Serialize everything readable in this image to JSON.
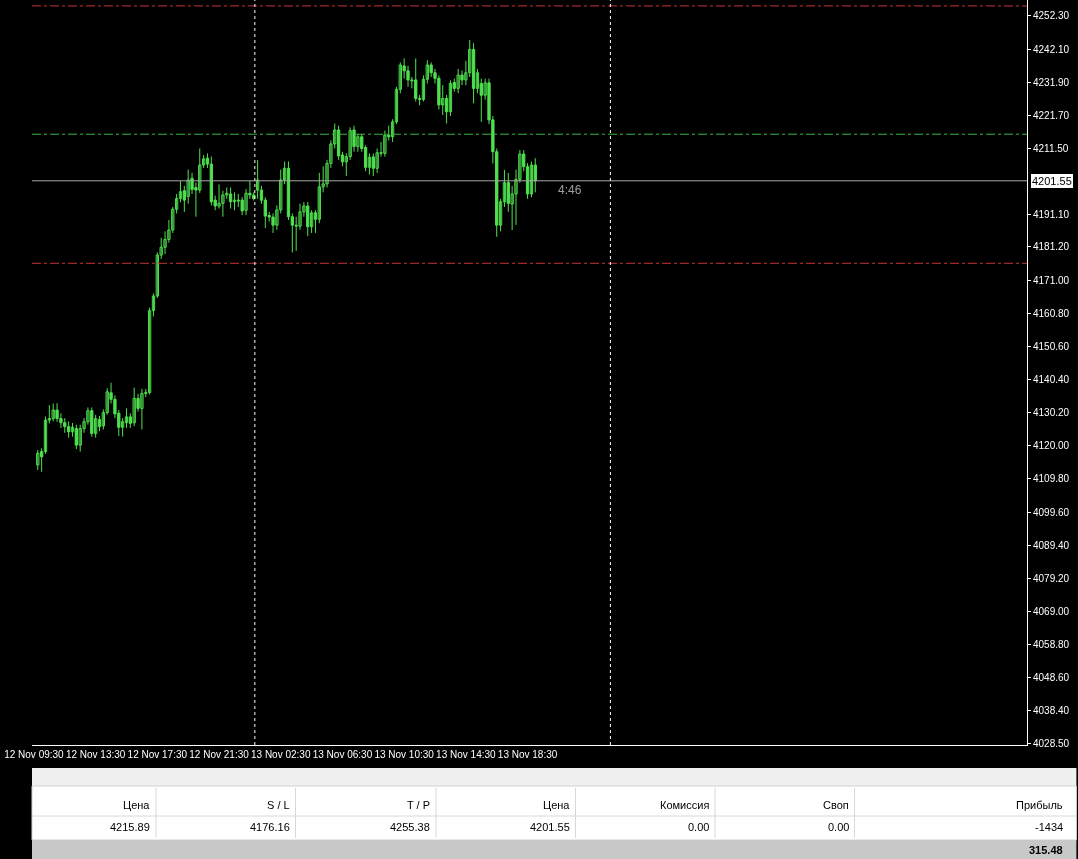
{
  "chart_data": {
    "type": "candlestick",
    "color": "#4fe04f",
    "categories": [
      "12 Nov 09:30",
      null,
      null,
      null,
      null,
      null,
      null,
      null,
      null,
      null,
      null,
      null,
      null,
      null,
      null,
      null,
      "12 Nov 13:30",
      null,
      null,
      null,
      null,
      null,
      null,
      null,
      null,
      null,
      null,
      null,
      null,
      null,
      null,
      null,
      "12 Nov 17:30",
      null,
      null,
      null,
      null,
      null,
      null,
      null,
      null,
      null,
      null,
      null,
      null,
      null,
      null,
      null,
      "12 Nov 21:30",
      null,
      null,
      null,
      null,
      null,
      null,
      null,
      null,
      null,
      null,
      null,
      null,
      null,
      null,
      null,
      "13 Nov 02:30",
      null,
      null,
      null,
      null,
      null,
      null,
      null,
      null,
      null,
      null,
      null,
      null,
      null,
      null,
      null,
      "13 Nov 06:30",
      null,
      null,
      null,
      null,
      null,
      null,
      null,
      null,
      null,
      null,
      null,
      null,
      null,
      null,
      null,
      "13 Nov 10:30",
      null,
      null,
      null,
      null,
      null,
      null,
      null,
      null,
      null,
      null,
      null,
      null,
      null,
      null,
      null,
      "13 Nov 14:30",
      null,
      null,
      null,
      null,
      null,
      null,
      null,
      null,
      null,
      null,
      null,
      null,
      null,
      null,
      null,
      "13 Nov 18:30",
      null,
      null,
      null,
      null,
      null,
      null,
      null,
      null,
      null,
      null,
      null,
      null,
      null,
      null,
      null,
      null,
      null,
      null,
      null,
      null,
      null,
      null,
      null,
      null,
      null,
      null,
      null,
      null,
      null,
      null,
      null,
      null,
      null,
      null,
      null,
      null,
      null,
      null,
      null,
      null,
      null,
      null,
      null,
      null,
      null,
      null,
      null,
      null,
      null,
      null,
      null,
      null,
      null,
      null,
      null,
      null,
      null,
      null,
      null,
      null,
      null,
      null,
      null,
      null,
      null,
      null,
      null,
      null,
      null,
      null,
      null,
      null,
      null,
      null,
      null,
      null,
      null,
      null,
      null,
      null,
      null,
      null,
      null,
      null,
      null,
      null,
      null,
      null,
      null,
      null,
      null,
      null,
      null,
      null,
      null,
      null,
      null,
      null,
      null,
      null,
      null,
      null,
      null,
      null,
      null,
      null,
      null,
      null,
      null,
      null,
      null,
      null,
      null,
      null,
      null,
      null,
      null,
      null,
      null,
      null,
      null,
      null,
      null,
      null,
      null,
      null,
      null,
      null,
      null
    ],
    "ohlc": [
      null,
      [
        4114.1,
        4118.7,
        4112.5,
        4117.7
      ],
      [
        4118.2,
        4119.2,
        4112.0,
        4116.6
      ],
      [
        4118.2,
        4129.0,
        4117.5,
        4127.9
      ],
      [
        4127.9,
        4132.5,
        4126.9,
        4128.4
      ],
      [
        4128.4,
        4133.0,
        4127.5,
        4131.0
      ],
      [
        4131.0,
        4133.1,
        4127.4,
        4128.4
      ],
      [
        4128.4,
        4130.0,
        4125.5,
        4127.1
      ],
      [
        4127.1,
        4128.5,
        4124.0,
        4125.9
      ],
      [
        4125.9,
        4127.5,
        4122.5,
        4124.3
      ],
      [
        4124.3,
        4127.0,
        4122.8,
        4125.7
      ],
      [
        4125.3,
        4126.5,
        4119.0,
        4120.2
      ],
      [
        4120.2,
        4126.5,
        4118.2,
        4125.3
      ],
      [
        4125.3,
        4128.5,
        4124.0,
        4127.4
      ],
      [
        4127.4,
        4131.8,
        4126.5,
        4130.8
      ],
      [
        4130.8,
        4131.8,
        4122.8,
        4123.8
      ],
      [
        4123.8,
        4129.5,
        4122.5,
        4128.4
      ],
      [
        4128.1,
        4129.2,
        4124.5,
        4125.9
      ],
      [
        4126.1,
        4131.2,
        4125.0,
        4130.2
      ],
      [
        4130.2,
        4137.7,
        4129.5,
        4136.6
      ],
      [
        4136.3,
        4139.4,
        4133.0,
        4134.3
      ],
      [
        4134.3,
        4135.5,
        4128.5,
        4129.8
      ],
      [
        4130.0,
        4131.0,
        4123.0,
        4125.7
      ],
      [
        4125.7,
        4128.5,
        4122.8,
        4127.4
      ],
      [
        4127.1,
        4131.5,
        4125.5,
        4128.9
      ],
      [
        4128.9,
        4130.0,
        4125.5,
        4126.9
      ],
      [
        4127.1,
        4137.9,
        4126.0,
        4134.6
      ],
      [
        4134.6,
        4136.0,
        4130.5,
        4131.5
      ],
      [
        4131.5,
        4137.5,
        4125.0,
        4136.1
      ],
      [
        4136.1,
        4137.5,
        4135.0,
        4136.4
      ],
      [
        4136.4,
        4162.5,
        4135.8,
        4161.6
      ],
      [
        4161.6,
        4166.9,
        4159.8,
        4166.1
      ],
      [
        4166.1,
        4179.5,
        4165.5,
        4178.7
      ],
      [
        4178.7,
        4184.0,
        4177.5,
        4181.1
      ],
      [
        4181.1,
        4186.0,
        4179.0,
        4183.5
      ],
      [
        4183.5,
        4189.5,
        4182.5,
        4186.4
      ],
      [
        4186.4,
        4193.5,
        4185.5,
        4192.8
      ],
      [
        4192.8,
        4197.5,
        4191.5,
        4196.1
      ],
      [
        4196.1,
        4201.5,
        4195.0,
        4198.2
      ],
      [
        4198.5,
        4200.0,
        4192.0,
        4195.6
      ],
      [
        4196.7,
        4205.0,
        4194.5,
        4201.8
      ],
      [
        4202.3,
        4204.0,
        4197.5,
        4198.9
      ],
      [
        4199.5,
        4201.0,
        4190.5,
        4198.7
      ],
      [
        4198.7,
        4211.5,
        4197.8,
        4206.4
      ],
      [
        4206.4,
        4209.5,
        4205.5,
        4208.3
      ],
      [
        4208.5,
        4210.0,
        4205.5,
        4206.7
      ],
      [
        4206.7,
        4209.0,
        4194.0,
        4195.1
      ],
      [
        4195.6,
        4197.0,
        4192.5,
        4193.8
      ],
      [
        4193.8,
        4200.5,
        4193.0,
        4194.6
      ],
      [
        4194.6,
        4198.5,
        4190.5,
        4197.2
      ],
      [
        4197.2,
        4199.5,
        4196.0,
        4197.7
      ],
      [
        4197.5,
        4199.5,
        4193.0,
        4195.1
      ],
      [
        4195.1,
        4198.0,
        4192.5,
        4195.6
      ],
      [
        4195.6,
        4197.5,
        4193.5,
        4195.3
      ],
      [
        4195.6,
        4196.5,
        4191.0,
        4192.3
      ],
      [
        4192.5,
        4199.0,
        4191.0,
        4197.7
      ],
      [
        4197.7,
        4201.5,
        4196.0,
        4197.2
      ],
      [
        4197.2,
        4198.0,
        4195.5,
        4196.1
      ],
      [
        4198.7,
        4207.9,
        4196.0,
        4201.8
      ],
      [
        4198.7,
        4200.0,
        4194.5,
        4195.6
      ],
      [
        4195.6,
        4196.5,
        4187.0,
        4190.7
      ],
      [
        4190.9,
        4192.0,
        4189.0,
        4190.4
      ],
      [
        4190.4,
        4191.5,
        4185.5,
        4187.9
      ],
      [
        4187.9,
        4194.0,
        4186.5,
        4192.6
      ],
      [
        4192.6,
        4205.0,
        4191.5,
        4201.8
      ],
      [
        4201.8,
        4207.5,
        4200.5,
        4205.4
      ],
      [
        4205.4,
        4207.5,
        4189.5,
        4190.5
      ],
      [
        4190.5,
        4191.5,
        4179.5,
        4187.9
      ],
      [
        4187.9,
        4190.5,
        4180.0,
        4187.6
      ],
      [
        4187.6,
        4194.5,
        4186.5,
        4192.0
      ],
      [
        4192.0,
        4195.0,
        4190.5,
        4193.8
      ],
      [
        4193.8,
        4195.0,
        4184.5,
        4187.4
      ],
      [
        4187.4,
        4192.5,
        4185.5,
        4191.7
      ],
      [
        4191.7,
        4192.5,
        4185.5,
        4189.7
      ],
      [
        4189.7,
        4204.0,
        4188.5,
        4199.7
      ],
      [
        4199.7,
        4206.0,
        4198.0,
        4200.6
      ],
      [
        4200.6,
        4208.0,
        4199.5,
        4206.9
      ],
      [
        4206.9,
        4214.0,
        4205.5,
        4212.9
      ],
      [
        4212.9,
        4219.2,
        4211.5,
        4217.2
      ],
      [
        4217.2,
        4218.5,
        4208.0,
        4209.2
      ],
      [
        4209.5,
        4210.5,
        4206.0,
        4207.4
      ],
      [
        4207.4,
        4210.0,
        4203.0,
        4209.0
      ],
      [
        4209.0,
        4218.0,
        4208.0,
        4217.0
      ],
      [
        4217.2,
        4218.5,
        4210.5,
        4212.1
      ],
      [
        4212.1,
        4216.0,
        4210.5,
        4215.1
      ],
      [
        4215.1,
        4216.0,
        4210.5,
        4211.5
      ],
      [
        4211.8,
        4212.5,
        4204.5,
        4205.7
      ],
      [
        4205.7,
        4210.0,
        4203.5,
        4208.8
      ],
      [
        4208.9,
        4210.0,
        4203.0,
        4205.4
      ],
      [
        4205.4,
        4211.5,
        4204.0,
        4210.2
      ],
      [
        4210.2,
        4213.5,
        4209.0,
        4210.0
      ],
      [
        4210.0,
        4217.0,
        4209.0,
        4215.6
      ],
      [
        4215.6,
        4218.5,
        4214.0,
        4215.1
      ],
      [
        4215.1,
        4220.5,
        4213.5,
        4219.7
      ],
      [
        4219.7,
        4230.5,
        4219.0,
        4229.7
      ],
      [
        4229.7,
        4238.0,
        4228.5,
        4237.2
      ],
      [
        4236.9,
        4239.2,
        4233.0,
        4235.4
      ],
      [
        4235.4,
        4237.0,
        4230.5,
        4232.6
      ],
      [
        4232.6,
        4233.5,
        4230.0,
        4232.3
      ],
      [
        4232.6,
        4239.2,
        4226.0,
        4226.9
      ],
      [
        4226.9,
        4228.0,
        4224.8,
        4226.6
      ],
      [
        4226.6,
        4234.0,
        4226.0,
        4232.8
      ],
      [
        4232.8,
        4238.7,
        4231.5,
        4237.2
      ],
      [
        4237.2,
        4238.0,
        4233.5,
        4234.8
      ],
      [
        4234.8,
        4236.0,
        4231.5,
        4233.1
      ],
      [
        4233.1,
        4234.0,
        4223.5,
        4224.9
      ],
      [
        4224.9,
        4231.0,
        4221.8,
        4226.9
      ],
      [
        4226.9,
        4228.0,
        4219.2,
        4222.8
      ],
      [
        4222.8,
        4232.5,
        4221.5,
        4231.5
      ],
      [
        4231.8,
        4233.0,
        4229.0,
        4230.0
      ],
      [
        4230.0,
        4236.0,
        4228.5,
        4234.1
      ],
      [
        4234.1,
        4235.5,
        4231.0,
        4232.6
      ],
      [
        4232.6,
        4238.5,
        4231.0,
        4234.8
      ],
      [
        4234.8,
        4244.9,
        4233.5,
        4242.0
      ],
      [
        4242.0,
        4243.9,
        4225.4,
        4230.0
      ],
      [
        4230.0,
        4236.0,
        4228.5,
        4234.8
      ],
      [
        4231.5,
        4233.0,
        4219.7,
        4227.9
      ],
      [
        4227.9,
        4233.0,
        4226.5,
        4231.7
      ],
      [
        4231.7,
        4233.0,
        4219.0,
        4220.3
      ],
      [
        4220.3,
        4221.5,
        4206.9,
        4210.5
      ],
      [
        4210.5,
        4211.5,
        4184.3,
        4187.9
      ],
      [
        4187.9,
        4196.0,
        4186.0,
        4195.1
      ],
      [
        4195.1,
        4204.9,
        4193.5,
        4201.0
      ],
      [
        4201.0,
        4204.0,
        4192.0,
        4194.6
      ],
      [
        4194.4,
        4200.0,
        4186.4,
        4197.5
      ],
      [
        4197.5,
        4205.0,
        4188.0,
        4202.0
      ],
      [
        4202.0,
        4211.0,
        4201.0,
        4209.8
      ],
      [
        4209.8,
        4211.0,
        4204.5,
        4205.9
      ],
      [
        4205.9,
        4207.0,
        4196.0,
        4197.5
      ],
      [
        4197.5,
        4207.5,
        4196.5,
        4206.4
      ],
      [
        4206.4,
        4208.5,
        4198.0,
        4201.55
      ],
      null,
      null,
      null,
      null,
      null,
      null,
      null,
      null,
      null,
      null,
      null,
      null,
      null,
      null,
      null,
      null,
      null,
      null,
      null,
      null,
      null,
      null,
      null,
      null,
      null,
      null,
      null,
      null,
      null,
      null,
      null,
      null,
      null,
      null,
      null,
      null,
      null,
      null,
      null,
      null,
      null,
      null,
      null,
      null,
      null,
      null,
      null,
      null,
      null,
      null,
      null,
      null,
      null,
      null,
      null,
      null,
      null,
      null,
      null,
      null,
      null,
      null,
      null,
      null,
      null,
      null,
      null,
      null,
      null,
      null,
      null,
      null,
      null,
      null,
      null,
      null,
      null,
      null,
      null,
      null,
      null,
      null,
      null,
      null,
      null,
      null,
      null,
      null,
      null,
      null,
      null,
      null,
      null,
      null,
      null,
      null,
      null,
      null,
      null,
      null,
      null,
      null,
      null,
      null,
      null,
      null,
      null,
      null,
      null,
      null,
      null,
      null,
      null,
      null,
      null,
      null,
      null,
      null,
      null,
      null,
      null,
      null,
      null,
      null,
      null,
      null,
      null
    ],
    "ylim": [
      4027.9,
      4257.2
    ],
    "yticks": [
      {
        "value": 4028.5,
        "label": "4028.50"
      },
      {
        "value": 4038.4,
        "label": "4038.40"
      },
      {
        "value": 4048.6,
        "label": "4048.60"
      },
      {
        "value": 4058.8,
        "label": "4058.80"
      },
      {
        "value": 4069.0,
        "label": "4069.00"
      },
      {
        "value": 4079.2,
        "label": "4079.20"
      },
      {
        "value": 4089.4,
        "label": "4089.40"
      },
      {
        "value": 4099.6,
        "label": "4099.60"
      },
      {
        "value": 4109.8,
        "label": "4109.80"
      },
      {
        "value": 4120.0,
        "label": "4120.00"
      },
      {
        "value": 4130.2,
        "label": "4130.20"
      },
      {
        "value": 4140.4,
        "label": "4140.40"
      },
      {
        "value": 4150.6,
        "label": "4150.60"
      },
      {
        "value": 4160.8,
        "label": "4160.80"
      },
      {
        "value": 4171.0,
        "label": "4171.00"
      },
      {
        "value": 4181.2,
        "label": "4181.20"
      },
      {
        "value": 4191.1,
        "label": "4191.10"
      },
      {
        "value": 4211.5,
        "label": "4211.50"
      },
      {
        "value": 4221.7,
        "label": "4221.70"
      },
      {
        "value": 4231.9,
        "label": "4231.90"
      },
      {
        "value": 4242.1,
        "label": "4242.10"
      },
      {
        "value": 4252.3,
        "label": "4252.30"
      }
    ],
    "ref_lines": [
      {
        "axis": "y",
        "value": 4255.38,
        "color": "#c83232",
        "line_style": "dashed"
      },
      {
        "axis": "y",
        "value": 4215.89,
        "color": "#3cb43c",
        "line_style": "dashed"
      },
      {
        "axis": "y",
        "value": 4176.16,
        "color": "#c83232",
        "line_style": "dashed"
      },
      {
        "axis": "y",
        "value": 4201.55,
        "color": "#a8a8a8",
        "line_style": "solid",
        "label": "4201.55"
      }
    ],
    "annotations": [
      "4:46",
      "Цена",
      "S / L",
      "T / P",
      "Цена",
      "Комиссия",
      "Своп",
      "Прибыль",
      "4215.89",
      "4176.16",
      "4255.38",
      "4201.55",
      "0.00",
      "0.00",
      "-1434",
      "315.48"
    ]
  }
}
